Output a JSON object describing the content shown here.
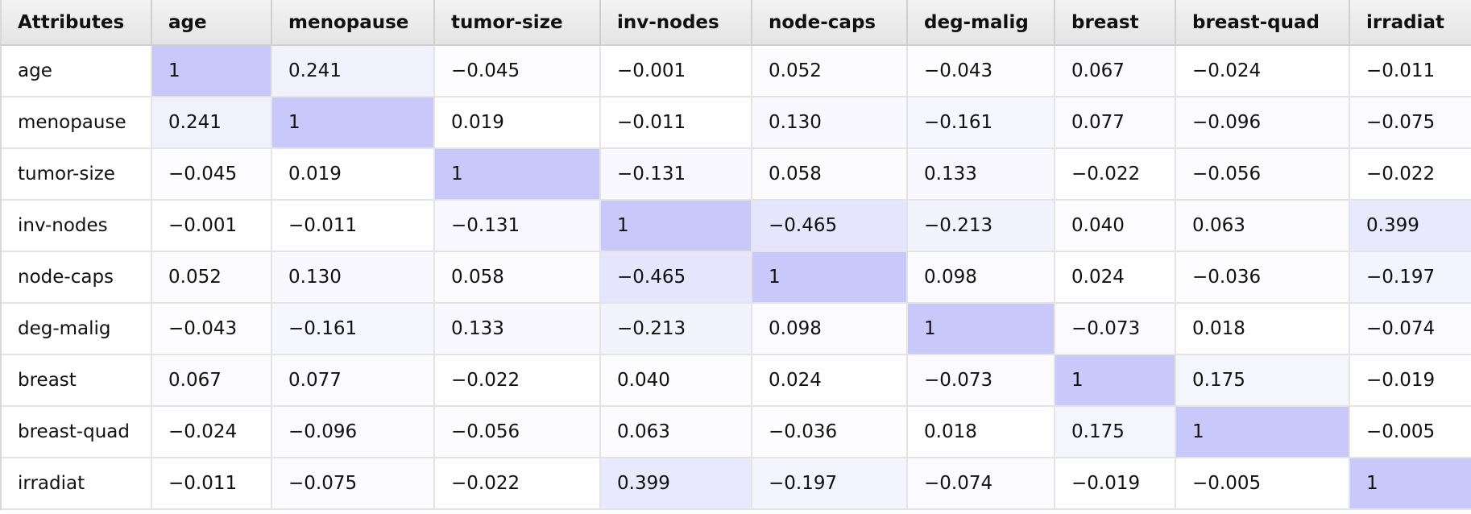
{
  "chart_data": {
    "type": "table",
    "header_label": "Attributes",
    "attributes": [
      "age",
      "menopause",
      "tumor-size",
      "inv-nodes",
      "node-caps",
      "deg-malig",
      "breast",
      "breast-quad",
      "irradiat"
    ],
    "columns_visible": [
      "age",
      "menopause",
      "tumor-size",
      "inv-nodes",
      "node-caps",
      "deg-malig",
      "breast",
      "breast-quad",
      "irradiat"
    ],
    "matrix": [
      [
        "1",
        "0.241",
        "−0.045",
        "−0.001",
        "0.052",
        "−0.043",
        "0.067",
        "−0.024",
        "−0.011"
      ],
      [
        "0.241",
        "1",
        "0.019",
        "−0.011",
        "0.130",
        "−0.161",
        "0.077",
        "−0.096",
        "−0.075"
      ],
      [
        "−0.045",
        "0.019",
        "1",
        "−0.131",
        "0.058",
        "0.133",
        "−0.022",
        "−0.056",
        "−0.022"
      ],
      [
        "−0.001",
        "−0.011",
        "−0.131",
        "1",
        "−0.465",
        "−0.213",
        "0.040",
        "0.063",
        "0.399"
      ],
      [
        "0.052",
        "0.130",
        "0.058",
        "−0.465",
        "1",
        "0.098",
        "0.024",
        "−0.036",
        "−0.197"
      ],
      [
        "−0.043",
        "−0.161",
        "0.133",
        "−0.213",
        "0.098",
        "1",
        "−0.073",
        "0.018",
        "−0.074"
      ],
      [
        "0.067",
        "0.077",
        "−0.022",
        "0.040",
        "0.024",
        "−0.073",
        "1",
        "0.175",
        "−0.019"
      ],
      [
        "−0.024",
        "−0.096",
        "−0.056",
        "0.063",
        "−0.036",
        "0.018",
        "0.175",
        "1",
        "−0.005"
      ],
      [
        "−0.011",
        "−0.075",
        "−0.022",
        "0.399",
        "−0.197",
        "−0.074",
        "−0.019",
        "−0.005",
        "1"
      ]
    ],
    "color_scale": {
      "high": "#c8c8fa",
      "low": "#ffffff"
    }
  }
}
